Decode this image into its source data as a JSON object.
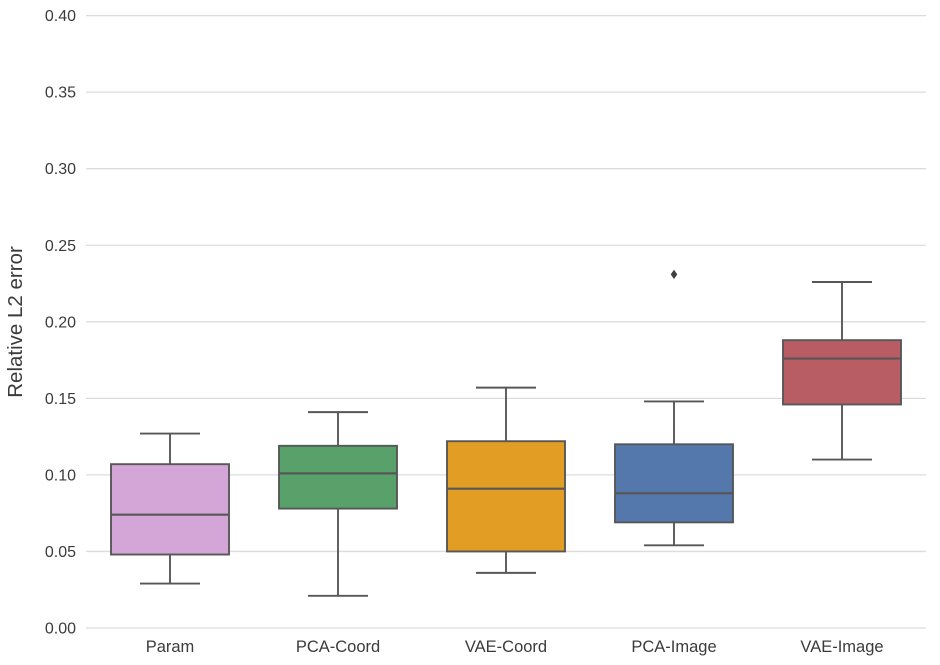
{
  "figure": {
    "background": "#ffffff"
  },
  "chart_data": {
    "type": "boxplot",
    "title": "",
    "xlabel": "",
    "ylabel": "Relative L2 error",
    "grid": true,
    "legend": false,
    "ylim": [
      0.0,
      0.41
    ],
    "ytick_labels": [
      "0.00",
      "0.05",
      "0.10",
      "0.15",
      "0.20",
      "0.25",
      "0.30",
      "0.35",
      "0.40"
    ],
    "ytick_values": [
      0.0,
      0.05,
      0.1,
      0.15,
      0.2,
      0.25,
      0.3,
      0.35,
      0.4
    ],
    "categories": [
      "Param",
      "PCA-Coord",
      "VAE-Coord",
      "PCA-Image",
      "VAE-Image"
    ],
    "series": [
      {
        "name": "Param",
        "color": "#d4a6d7",
        "whisker_low": 0.029,
        "q1": 0.048,
        "median": 0.074,
        "q3": 0.107,
        "whisker_high": 0.127,
        "outliers": []
      },
      {
        "name": "PCA-Coord",
        "color": "#58a16b",
        "whisker_low": 0.021,
        "q1": 0.078,
        "median": 0.101,
        "q3": 0.119,
        "whisker_high": 0.141,
        "outliers": []
      },
      {
        "name": "VAE-Coord",
        "color": "#e29d24",
        "whisker_low": 0.036,
        "q1": 0.05,
        "median": 0.091,
        "q3": 0.122,
        "whisker_high": 0.157,
        "outliers": []
      },
      {
        "name": "PCA-Image",
        "color": "#5578ac",
        "whisker_low": 0.054,
        "q1": 0.069,
        "median": 0.088,
        "q3": 0.12,
        "whisker_high": 0.148,
        "outliers": [
          0.231
        ]
      },
      {
        "name": "VAE-Image",
        "color": "#b85d64",
        "whisker_low": 0.11,
        "q1": 0.146,
        "median": 0.176,
        "q3": 0.188,
        "whisker_high": 0.226,
        "outliers": []
      }
    ],
    "style": {
      "grid_color": "#dcdcdc",
      "box_edge_color": "#575757",
      "tick_label_color": "#3b3b3b",
      "axis_label_color": "#3b3b3b",
      "outlier_color": "#3f3f3f"
    }
  }
}
